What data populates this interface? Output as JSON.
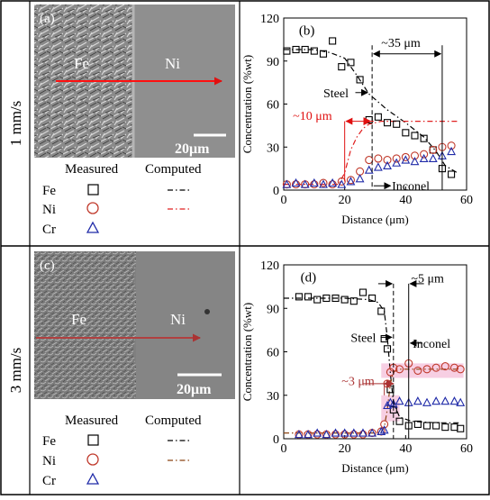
{
  "rows": [
    {
      "speed_label": "1 mm/s",
      "micrograph": {
        "panel_label": "(a)",
        "left_label": "Fe",
        "right_label": "Ni",
        "scale_label": "20μm"
      },
      "legend": {
        "measured_header": "Measured",
        "computed_header": "Computed",
        "items": [
          "Fe",
          "Ni",
          "Cr"
        ]
      }
    },
    {
      "speed_label": "3 mm/s",
      "micrograph": {
        "panel_label": "(c)",
        "left_label": "Fe",
        "right_label": "Ni",
        "scale_label": "20μm"
      },
      "legend": {
        "measured_header": "Measured",
        "computed_header": "Computed",
        "items": [
          "Fe",
          "Ni",
          "Cr"
        ]
      }
    }
  ],
  "colors": {
    "fe": "#000000",
    "ni": "#c0392b",
    "cr": "#1f2aa8",
    "computed_ni_row1": "#e02020",
    "computed_ni_row2": "#8b4513",
    "highlight": "#f7cfe3",
    "arrow_red": "#e01010"
  },
  "chart_data": [
    {
      "type": "scatter",
      "panel_label": "(b)",
      "xlabel": "Distance (μm)",
      "ylabel": "Concentration (%wt)",
      "xlim": [
        0,
        60
      ],
      "ylim": [
        0,
        120
      ],
      "xticks": [
        0,
        20,
        40,
        60
      ],
      "yticks": [
        0,
        30,
        60,
        90,
        120
      ],
      "series": [
        {
          "name": "Fe",
          "marker": "square",
          "x": [
            1,
            4,
            7,
            10,
            13,
            16,
            19,
            22,
            25,
            28,
            31,
            34,
            37,
            40,
            43,
            46,
            49,
            52,
            55
          ],
          "y": [
            97,
            98,
            98,
            97,
            95,
            104,
            86,
            89,
            77,
            49,
            51,
            47,
            46,
            40,
            38,
            36,
            28,
            15,
            11
          ]
        },
        {
          "name": "Ni",
          "marker": "circle",
          "x": [
            1,
            4,
            7,
            10,
            13,
            16,
            19,
            22,
            25,
            28,
            31,
            34,
            37,
            40,
            43,
            46,
            49,
            52,
            55
          ],
          "y": [
            4,
            4,
            4,
            4,
            5,
            4,
            6,
            7,
            13,
            21,
            22,
            21,
            22,
            23,
            24,
            25,
            28,
            30,
            31
          ]
        },
        {
          "name": "Cr",
          "marker": "triangle",
          "x": [
            1,
            4,
            7,
            10,
            13,
            16,
            19,
            22,
            25,
            28,
            31,
            34,
            37,
            40,
            43,
            46,
            49,
            52,
            55
          ],
          "y": [
            4,
            5,
            4,
            5,
            4,
            5,
            4,
            6,
            8,
            14,
            16,
            17,
            19,
            21,
            20,
            22,
            22,
            24,
            27
          ]
        }
      ],
      "computed": [
        {
          "name": "Fe",
          "style": "dash-dot",
          "x": [
            0,
            10,
            15,
            20,
            24,
            28,
            34,
            40,
            46,
            50,
            53,
            57
          ],
          "y": [
            98,
            98,
            96,
            92,
            80,
            67,
            56,
            47,
            37,
            27,
            17,
            12
          ]
        },
        {
          "name": "Ni",
          "style": "dash-dot",
          "x": [
            0,
            18,
            20,
            22,
            24,
            26,
            28,
            32,
            40,
            57
          ],
          "y": [
            4,
            4,
            12,
            28,
            37,
            43,
            46,
            48,
            48,
            48
          ]
        }
      ],
      "annotations": {
        "steel": "Steel",
        "inconel": "Inconel",
        "width_outer": "~35 μm",
        "width_inner": "~10 μm"
      }
    },
    {
      "type": "scatter",
      "panel_label": "(d)",
      "xlabel": "Distance (μm)",
      "ylabel": "Concentration (%wt)",
      "xlim": [
        0,
        60
      ],
      "ylim": [
        0,
        120
      ],
      "xticks": [
        0,
        20,
        40,
        60
      ],
      "yticks": [
        0,
        30,
        60,
        90,
        120
      ],
      "series": [
        {
          "name": "Fe",
          "marker": "square",
          "x": [
            5,
            8,
            11,
            14,
            17,
            20,
            23,
            26,
            29,
            32,
            33,
            34,
            35,
            36,
            38,
            41,
            44,
            47,
            50,
            53,
            56,
            58
          ],
          "y": [
            98,
            98,
            96,
            97,
            97,
            96,
            95,
            101,
            97,
            88,
            69,
            62,
            34,
            20,
            12,
            9,
            10,
            9,
            9,
            8,
            8,
            7
          ]
        },
        {
          "name": "Ni",
          "marker": "circle",
          "x": [
            5,
            8,
            11,
            14,
            17,
            20,
            23,
            26,
            29,
            32,
            33,
            34,
            35,
            36,
            38,
            41,
            44,
            47,
            50,
            53,
            56,
            58
          ],
          "y": [
            3,
            3,
            3,
            3,
            3,
            3,
            3,
            3,
            4,
            5,
            10,
            38,
            46,
            49,
            48,
            52,
            47,
            48,
            49,
            50,
            49,
            48
          ]
        },
        {
          "name": "Cr",
          "marker": "triangle",
          "x": [
            5,
            8,
            11,
            14,
            17,
            20,
            23,
            26,
            29,
            32,
            33,
            34,
            35,
            36,
            38,
            41,
            44,
            47,
            50,
            53,
            56,
            58
          ],
          "y": [
            3,
            3,
            4,
            3,
            4,
            4,
            4,
            4,
            4,
            5,
            6,
            23,
            25,
            24,
            26,
            25,
            26,
            25,
            26,
            26,
            26,
            25
          ]
        }
      ],
      "computed": [
        {
          "name": "Fe",
          "style": "dash-dot",
          "x": [
            0,
            20,
            28,
            31,
            33,
            34,
            35,
            36,
            38,
            42,
            50,
            58
          ],
          "y": [
            97,
            97,
            96,
            94,
            88,
            70,
            45,
            25,
            15,
            12,
            11,
            11
          ]
        },
        {
          "name": "Ni",
          "style": "dash-dot",
          "x": [
            0,
            30,
            32,
            33,
            34,
            35,
            36,
            38,
            45,
            58
          ],
          "y": [
            4,
            4,
            5,
            8,
            20,
            38,
            46,
            48,
            48,
            48
          ]
        }
      ],
      "annotations": {
        "steel": "Steel",
        "inconel": "Inconel",
        "width_outer": "~5 μm",
        "width_inner": "~3 μm"
      }
    }
  ]
}
